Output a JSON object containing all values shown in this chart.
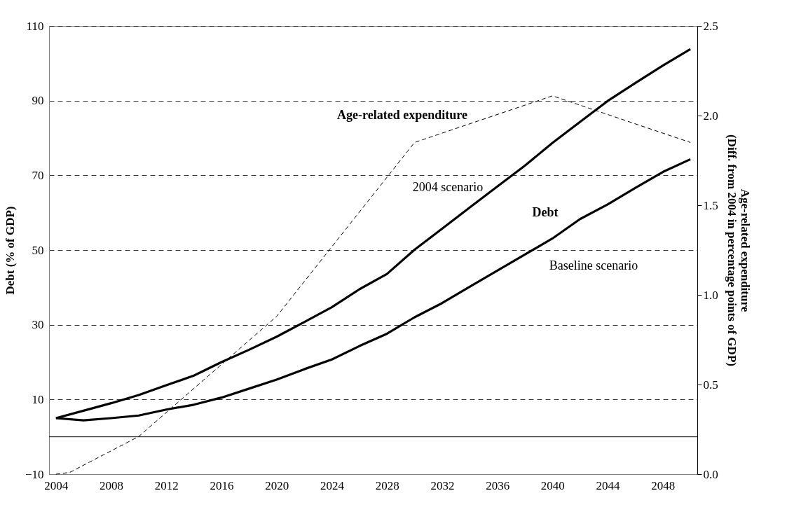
{
  "chart_data": {
    "type": "line",
    "ylabel": "Debt (% of GDP)",
    "y2label": "Age-related expenditure\n(Diff. from 2004 in percentage points of GDP)",
    "xlim": [
      2003.5,
      2050.5
    ],
    "xticks": [
      2004,
      2008,
      2012,
      2016,
      2020,
      2024,
      2028,
      2032,
      2036,
      2040,
      2044,
      2048
    ],
    "ylim": [
      -10,
      110
    ],
    "yticks": [
      -10,
      10,
      30,
      50,
      70,
      90,
      110
    ],
    "y2lim": [
      0,
      2.5
    ],
    "y2ticks": [
      {
        "value": 0,
        "label": "0.0"
      },
      0.5,
      {
        "value": 1,
        "label": "1.0"
      },
      1.5,
      {
        "value": 2,
        "label": "2.0"
      },
      2.5
    ],
    "grid": "y",
    "series": [
      {
        "color": "#000000",
        "line_style": "solid",
        "x": [
          2004,
          2006,
          2008,
          2010,
          2012,
          2014,
          2016,
          2018,
          2020,
          2022,
          2024,
          2026,
          2028,
          2030,
          2032,
          2034,
          2036,
          2038,
          2040,
          2042,
          2044,
          2046,
          2048,
          2050
        ],
        "values": [
          5,
          7.0,
          9.0,
          11.2,
          13.8,
          16.4,
          20.0,
          23.3,
          26.8,
          30.7,
          34.7,
          39.5,
          43.6,
          50.1,
          55.7,
          61.4,
          67.0,
          72.6,
          78.7,
          84.3,
          89.9,
          94.7,
          99.4,
          103.8
        ]
      },
      {
        "color": "#000000",
        "line_style": "solid",
        "x": [
          2004,
          2006,
          2008,
          2010,
          2012,
          2014,
          2016,
          2018,
          2020,
          2022,
          2024,
          2026,
          2028,
          2030,
          2032,
          2034,
          2036,
          2038,
          2040,
          2042,
          2044,
          2046,
          2048,
          2050
        ],
        "values": [
          5,
          4.4,
          5.0,
          5.7,
          7.3,
          8.6,
          10.5,
          12.9,
          15.3,
          18.1,
          20.7,
          24.3,
          27.6,
          32.0,
          35.8,
          40.2,
          44.5,
          48.8,
          53.1,
          58.3,
          62.2,
          66.6,
          70.9,
          74.3
        ]
      },
      {
        "color": "#000000",
        "line_style": "dashed",
        "axis": "y2",
        "x": [
          2004,
          2005,
          2010,
          2020,
          2030,
          2040,
          2050
        ],
        "values": [
          0.0,
          0.01,
          0.21,
          0.88,
          1.85,
          2.11,
          1.85
        ]
      }
    ],
    "ref_lines": [
      {
        "axis": "y",
        "value": 0,
        "color": "#000000",
        "line_style": "solid"
      }
    ],
    "annotations": [
      "Age-related expenditure",
      "2004 scenario",
      "Debt",
      "Baseline scenario"
    ]
  }
}
